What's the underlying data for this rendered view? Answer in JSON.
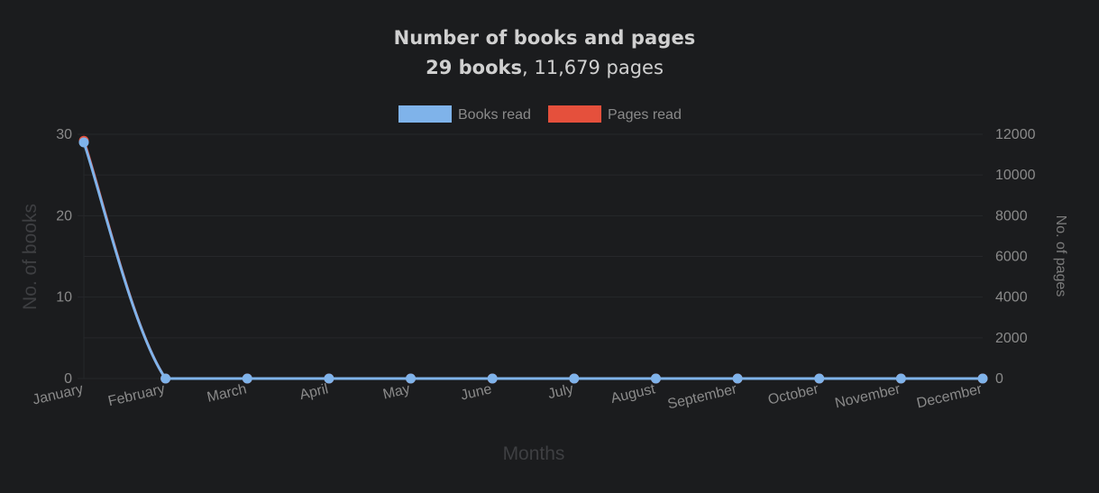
{
  "header": {
    "title": "Number of books and pages",
    "books_text": "29 books",
    "separator": ", ",
    "pages_text": "11,679 pages"
  },
  "colors": {
    "background": "#1b1c1e",
    "books": "#7fb3ea",
    "pages": "#e5503c",
    "grid": "#26272a"
  },
  "chart_data": {
    "type": "line",
    "title": "Number of books and pages",
    "xlabel": "Months",
    "ylabel": "No. of books",
    "y2label": "No. of pages",
    "categories": [
      "January",
      "February",
      "March",
      "April",
      "May",
      "June",
      "July",
      "August",
      "September",
      "October",
      "November",
      "December"
    ],
    "ylim": [
      0,
      30
    ],
    "y2lim": [
      0,
      12000
    ],
    "yticks": [
      "0",
      "10",
      "20",
      "30"
    ],
    "y2ticks": [
      "0",
      "2000",
      "4000",
      "6000",
      "8000",
      "10000",
      "12000"
    ],
    "legend_position": "top-center",
    "series": [
      {
        "name": "Books read",
        "axis": "left",
        "color": "#7fb3ea",
        "values": [
          29,
          0,
          0,
          0,
          0,
          0,
          0,
          0,
          0,
          0,
          0,
          0
        ]
      },
      {
        "name": "Pages read",
        "axis": "right",
        "color": "#e5503c",
        "values": [
          11679,
          0,
          0,
          0,
          0,
          0,
          0,
          0,
          0,
          0,
          0,
          0
        ]
      }
    ]
  }
}
